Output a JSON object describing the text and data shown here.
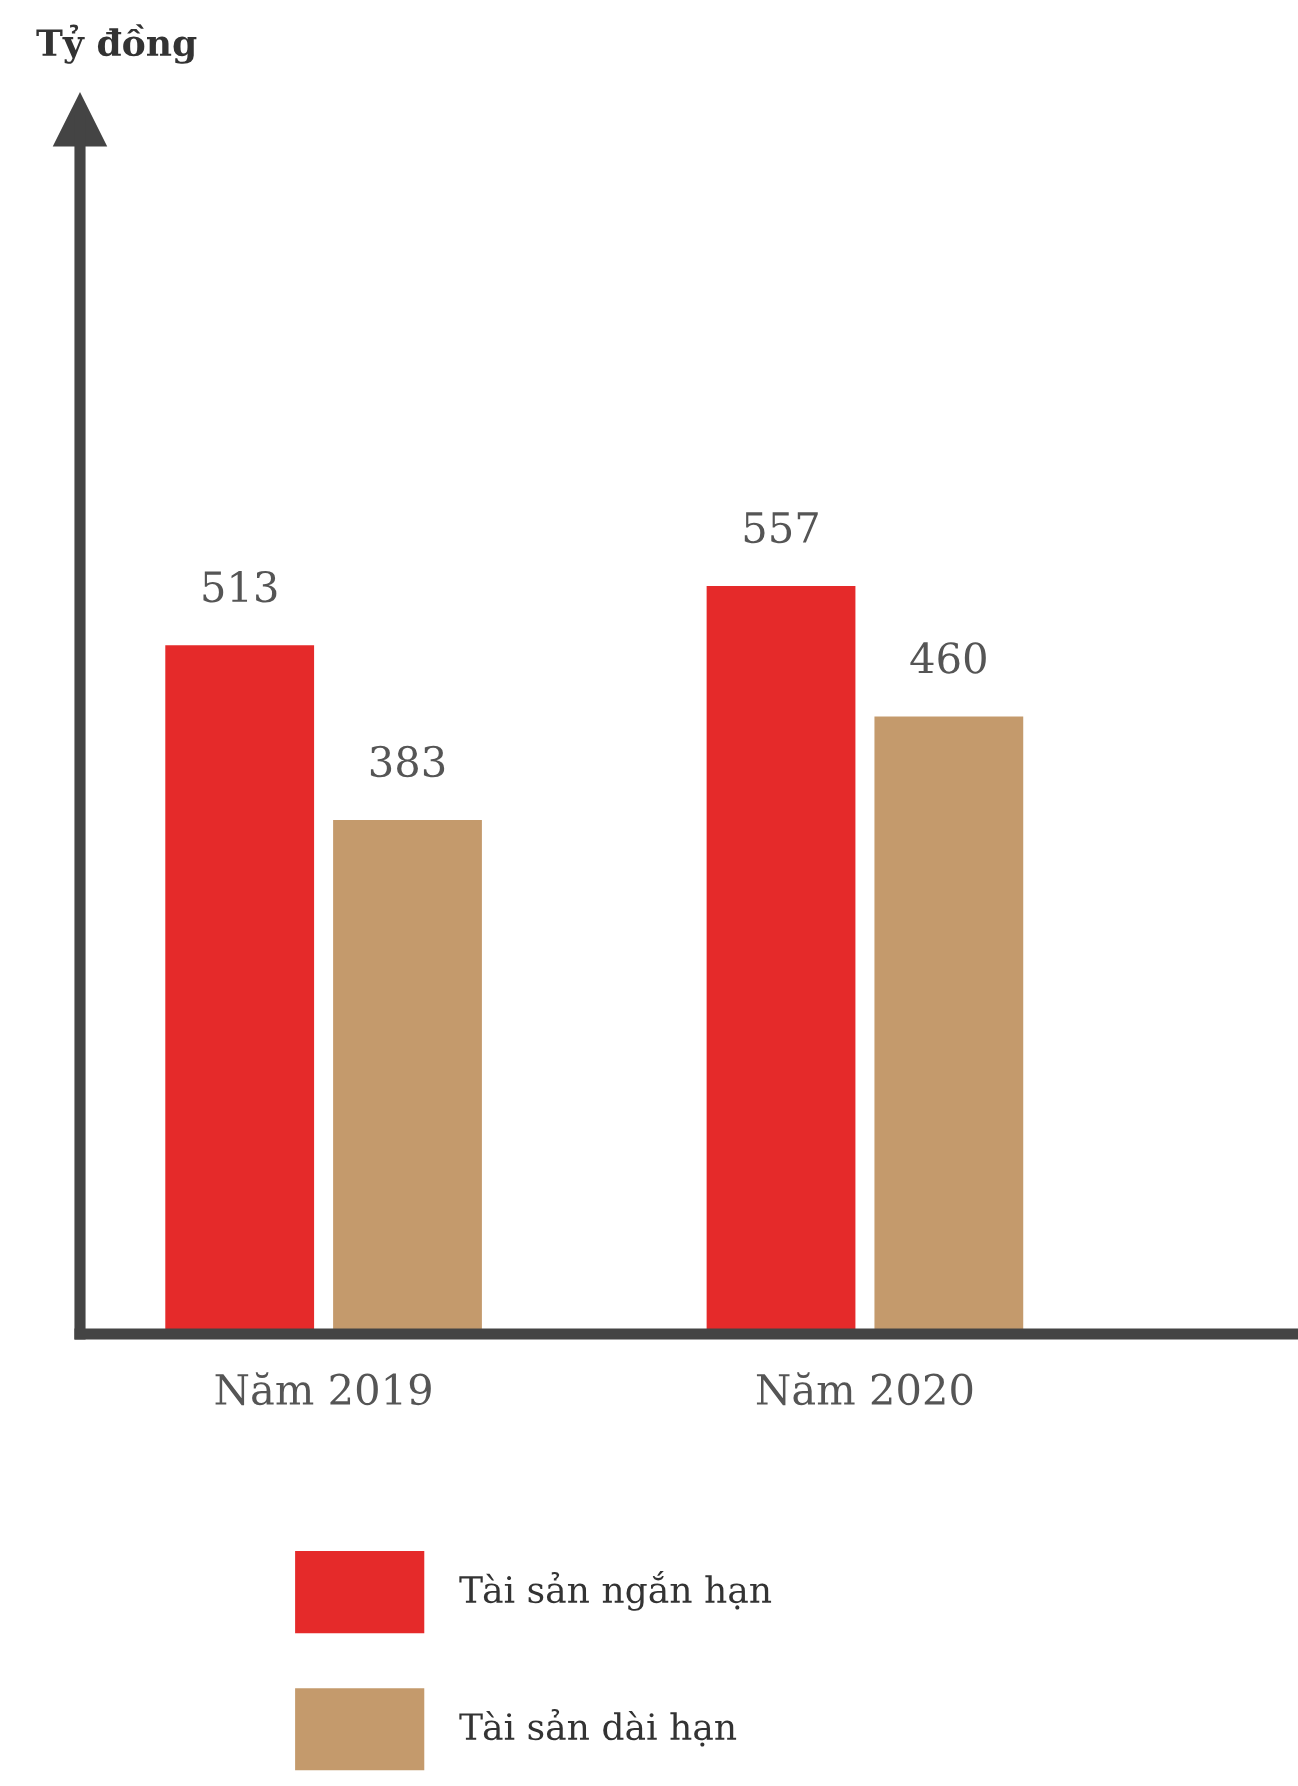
{
  "chart_data": {
    "type": "bar",
    "annotations": [
      "Tỷ đồng"
    ],
    "categories": [
      "Năm 2019",
      "Năm 2020"
    ],
    "series": [
      {
        "name": "Tài sản ngắn hạn",
        "color": "#e52a2a",
        "values": [
          513,
          557
        ]
      },
      {
        "name": "Tài sản dài hạn",
        "color": "#c49a6c",
        "values": [
          383,
          460
        ]
      }
    ],
    "data_labels": true,
    "legend": "bottom",
    "grid": false
  }
}
